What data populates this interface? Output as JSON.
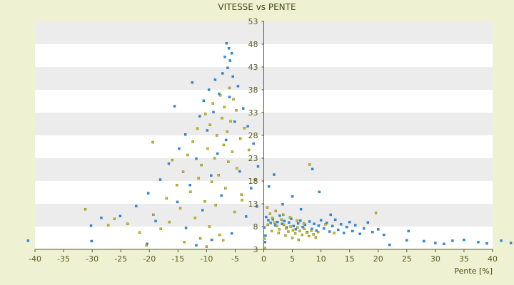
{
  "chart_data": {
    "type": "scatter",
    "title": "VITESSE vs PENTE",
    "xlabel": "Pente [%]",
    "ylabel": "",
    "xlim": [
      -40,
      40
    ],
    "ylim": [
      3,
      53
    ],
    "x_ticks": [
      -40,
      -35,
      -30,
      -25,
      -20,
      -15,
      -10,
      -5,
      0,
      5,
      10,
      15,
      20,
      25,
      30,
      35,
      40
    ],
    "y_ticks": [
      3,
      8,
      13,
      18,
      23,
      28,
      33,
      38,
      43,
      48,
      53
    ],
    "grid": true,
    "legend": "none",
    "colors": {
      "background": "#eef2d2",
      "plot_band_light": "#ffffff",
      "plot_band_dark": "#ececec",
      "axis": "#555533",
      "series_1": "#2f8fdf",
      "series_2": "#c8c020"
    },
    "series": [
      {
        "points": [
          [
            -6.5,
            48.2
          ],
          [
            -6.1,
            47.1
          ],
          [
            -5.6,
            46.0
          ],
          [
            -6.8,
            45.2
          ],
          [
            -5.9,
            44.4
          ],
          [
            -6.3,
            42.8
          ],
          [
            -7.2,
            41.6
          ],
          [
            -5.4,
            40.9
          ],
          [
            -8.5,
            40.2
          ],
          [
            -12.5,
            39.6
          ],
          [
            -4.5,
            38.8
          ],
          [
            -9.6,
            38.0
          ],
          [
            -7.8,
            37.1
          ],
          [
            -6.0,
            36.4
          ],
          [
            -10.5,
            35.6
          ],
          [
            -15.6,
            34.4
          ],
          [
            -3.6,
            33.9
          ],
          [
            -8.8,
            33.1
          ],
          [
            -11.2,
            32.2
          ],
          [
            -5.1,
            31.0
          ],
          [
            -2.8,
            30.0
          ],
          [
            -9.9,
            29.1
          ],
          [
            -13.7,
            28.2
          ],
          [
            -6.6,
            27.0
          ],
          [
            -1.8,
            26.2
          ],
          [
            -14.8,
            25.1
          ],
          [
            -8.1,
            24.0
          ],
          [
            -11.8,
            22.9
          ],
          [
            -16.6,
            21.8
          ],
          [
            -1.0,
            21.2
          ],
          [
            -4.2,
            20.1
          ],
          [
            -9.2,
            19.2
          ],
          [
            -18.1,
            18.3
          ],
          [
            -12.9,
            17.1
          ],
          [
            -2.2,
            16.4
          ],
          [
            -20.2,
            15.3
          ],
          [
            -7.4,
            14.8
          ],
          [
            -15.1,
            13.4
          ],
          [
            -22.3,
            12.5
          ],
          [
            -10.7,
            11.6
          ],
          [
            -25.1,
            10.3
          ],
          [
            -28.4,
            9.9
          ],
          [
            -18.9,
            9.2
          ],
          [
            -30.2,
            8.2
          ],
          [
            -30.1,
            4.8
          ],
          [
            -13.6,
            7.7
          ],
          [
            -5.6,
            6.5
          ],
          [
            -9.1,
            5.1
          ],
          [
            -20.4,
            4.2
          ],
          [
            -11.8,
            3.9
          ],
          [
            -41.2,
            4.9
          ],
          [
            -1.2,
            12.4
          ],
          [
            -3.1,
            10.2
          ],
          [
            0.4,
            10.1
          ],
          [
            0.8,
            9.4
          ],
          [
            1.2,
            8.8
          ],
          [
            1.6,
            9.6
          ],
          [
            2.0,
            8.3
          ],
          [
            2.4,
            9.0
          ],
          [
            2.8,
            10.4
          ],
          [
            3.2,
            8.6
          ],
          [
            3.6,
            9.2
          ],
          [
            4.0,
            7.8
          ],
          [
            4.4,
            8.9
          ],
          [
            4.8,
            9.7
          ],
          [
            5.2,
            8.1
          ],
          [
            5.6,
            7.4
          ],
          [
            6.0,
            8.7
          ],
          [
            6.4,
            9.3
          ],
          [
            6.8,
            7.9
          ],
          [
            7.2,
            8.4
          ],
          [
            7.6,
            6.8
          ],
          [
            8.0,
            9.1
          ],
          [
            8.4,
            7.5
          ],
          [
            8.8,
            8.6
          ],
          [
            9.2,
            7.1
          ],
          [
            9.6,
            8.2
          ],
          [
            10.0,
            9.4
          ],
          [
            10.5,
            7.6
          ],
          [
            11.0,
            8.8
          ],
          [
            11.5,
            6.9
          ],
          [
            12.0,
            8.1
          ],
          [
            12.5,
            9.5
          ],
          [
            13.0,
            7.3
          ],
          [
            13.5,
            8.5
          ],
          [
            14.0,
            6.6
          ],
          [
            14.5,
            7.9
          ],
          [
            15.0,
            9.0
          ],
          [
            15.5,
            7.0
          ],
          [
            16.0,
            8.3
          ],
          [
            16.8,
            6.4
          ],
          [
            17.5,
            7.6
          ],
          [
            18.2,
            8.9
          ],
          [
            19.0,
            6.8
          ],
          [
            20.0,
            7.4
          ],
          [
            21.0,
            6.2
          ],
          [
            22.0,
            4.0
          ],
          [
            25.0,
            5.0
          ],
          [
            25.3,
            7.0
          ],
          [
            28.0,
            4.8
          ],
          [
            30.0,
            4.4
          ],
          [
            31.5,
            4.2
          ],
          [
            33.0,
            4.9
          ],
          [
            35.0,
            5.1
          ],
          [
            37.5,
            4.6
          ],
          [
            39.0,
            4.3
          ],
          [
            41.5,
            4.9
          ],
          [
            43.2,
            4.4
          ],
          [
            8.5,
            20.6
          ],
          [
            9.7,
            15.6
          ],
          [
            5.0,
            14.6
          ],
          [
            0.9,
            16.8
          ],
          [
            1.8,
            19.4
          ],
          [
            3.3,
            12.9
          ],
          [
            6.5,
            11.8
          ],
          [
            11.7,
            10.6
          ],
          [
            0.2,
            4.6
          ],
          [
            0.3,
            6.0
          ],
          [
            0.1,
            7.8
          ]
        ]
      },
      {
        "points": [
          [
            -6.0,
            38.4
          ],
          [
            -7.6,
            36.8
          ],
          [
            -5.3,
            35.9
          ],
          [
            -8.9,
            35.0
          ],
          [
            -6.9,
            34.2
          ],
          [
            -4.8,
            33.5
          ],
          [
            -10.2,
            32.7
          ],
          [
            -7.3,
            31.8
          ],
          [
            -5.8,
            31.1
          ],
          [
            -9.4,
            30.3
          ],
          [
            -11.6,
            29.5
          ],
          [
            -6.4,
            28.8
          ],
          [
            -8.2,
            28.0
          ],
          [
            -4.1,
            27.3
          ],
          [
            -12.4,
            26.6
          ],
          [
            -7.0,
            25.9
          ],
          [
            -9.8,
            25.1
          ],
          [
            -5.5,
            24.4
          ],
          [
            -13.3,
            23.7
          ],
          [
            -8.6,
            23.0
          ],
          [
            -6.2,
            22.2
          ],
          [
            -10.9,
            21.5
          ],
          [
            -4.7,
            20.8
          ],
          [
            -14.1,
            20.0
          ],
          [
            -7.9,
            19.3
          ],
          [
            -11.4,
            18.6
          ],
          [
            -9.1,
            17.8
          ],
          [
            -15.2,
            17.1
          ],
          [
            -6.7,
            16.4
          ],
          [
            -12.8,
            15.6
          ],
          [
            -3.9,
            15.0
          ],
          [
            -17.0,
            14.2
          ],
          [
            -10.3,
            13.5
          ],
          [
            -8.4,
            12.7
          ],
          [
            -14.6,
            12.0
          ],
          [
            -5.1,
            11.2
          ],
          [
            -19.3,
            10.6
          ],
          [
            -12.0,
            9.9
          ],
          [
            -16.5,
            9.0
          ],
          [
            -23.8,
            8.6
          ],
          [
            -9.5,
            8.0
          ],
          [
            -27.2,
            8.3
          ],
          [
            -18.0,
            7.5
          ],
          [
            -21.7,
            6.7
          ],
          [
            -7.7,
            6.2
          ],
          [
            -11.1,
            5.4
          ],
          [
            -13.9,
            4.6
          ],
          [
            -20.5,
            3.9
          ],
          [
            -10.0,
            3.6
          ],
          [
            -31.2,
            11.8
          ],
          [
            -26.1,
            9.7
          ],
          [
            -2.6,
            24.8
          ],
          [
            -3.4,
            29.6
          ],
          [
            -1.5,
            18.2
          ],
          [
            -7.1,
            5.0
          ],
          [
            -3.8,
            13.8
          ],
          [
            -16.0,
            22.6
          ],
          [
            -19.4,
            26.5
          ],
          [
            0.6,
            12.2
          ],
          [
            1.1,
            10.8
          ],
          [
            1.5,
            9.9
          ],
          [
            1.9,
            8.9
          ],
          [
            2.3,
            8.1
          ],
          [
            2.7,
            7.4
          ],
          [
            3.1,
            9.5
          ],
          [
            3.5,
            8.4
          ],
          [
            3.9,
            7.6
          ],
          [
            4.3,
            6.9
          ],
          [
            4.7,
            8.0
          ],
          [
            5.1,
            7.2
          ],
          [
            5.5,
            6.5
          ],
          [
            5.9,
            7.8
          ],
          [
            6.3,
            7.0
          ],
          [
            6.7,
            6.2
          ],
          [
            7.1,
            7.5
          ],
          [
            7.5,
            6.7
          ],
          [
            7.9,
            5.9
          ],
          [
            8.3,
            7.1
          ],
          [
            8.7,
            6.3
          ],
          [
            9.1,
            5.6
          ],
          [
            9.5,
            6.8
          ],
          [
            2.1,
            11.4
          ],
          [
            3.4,
            10.6
          ],
          [
            4.6,
            10.0
          ],
          [
            5.8,
            9.3
          ],
          [
            7.0,
            8.7
          ],
          [
            2.6,
            6.6
          ],
          [
            3.8,
            6.0
          ],
          [
            5.0,
            5.5
          ],
          [
            6.1,
            5.1
          ],
          [
            1.4,
            7.0
          ],
          [
            0.7,
            8.4
          ],
          [
            8.0,
            21.6
          ],
          [
            19.6,
            11.0
          ],
          [
            0.2,
            3.3
          ],
          [
            0.1,
            5.3
          ],
          [
            10.8,
            8.5
          ],
          [
            12.3,
            6.6
          ]
        ]
      }
    ]
  }
}
